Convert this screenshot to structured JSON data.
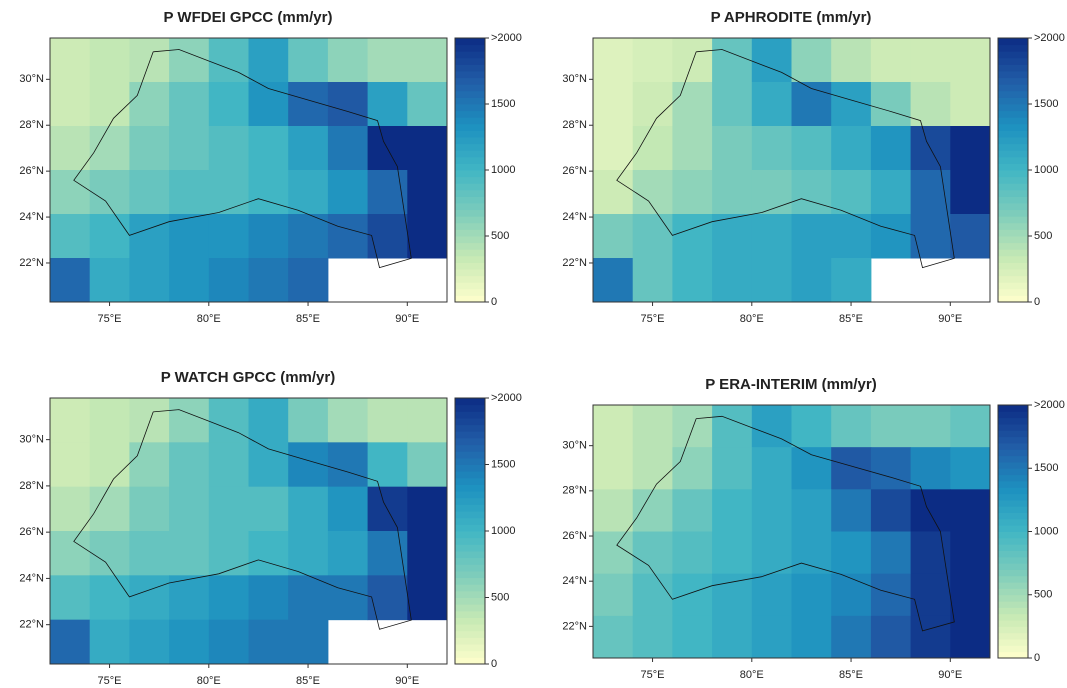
{
  "colors": [
    "#ffffcc",
    "#c7e9b4",
    "#7fcdbb",
    "#41b6c4",
    "#1d91c0",
    "#225ea8",
    "#0c2c84"
  ],
  "colorbar": {
    "lim": [
      0,
      2000
    ],
    "ticks": [
      0,
      500,
      1000,
      1500,
      {
        "value": 2000,
        "label": ">2000"
      }
    ]
  },
  "panels": [
    {
      "title": "P WFDEI GPCC (mm/yr)",
      "xlim": [
        72,
        92
      ],
      "ylim": [
        20.3,
        31.8
      ],
      "xticks": [
        {
          "value": 75,
          "label": "75°E"
        },
        {
          "value": 80,
          "label": "80°E"
        },
        {
          "value": 85,
          "label": "85°E"
        },
        {
          "value": 90,
          "label": "90°E"
        }
      ],
      "yticks": [
        {
          "value": 22,
          "label": "22°N"
        },
        {
          "value": 24,
          "label": "24°N"
        },
        {
          "value": 26,
          "label": "26°N"
        },
        {
          "value": 28,
          "label": "28°N"
        },
        {
          "value": 30,
          "label": "30°N"
        }
      ],
      "grid": [
        [
          300,
          350,
          400,
          600,
          900,
          1200,
          800,
          600,
          500,
          500
        ],
        [
          300,
          350,
          600,
          800,
          1000,
          1300,
          1600,
          1700,
          1200,
          800
        ],
        [
          400,
          500,
          700,
          800,
          900,
          1000,
          1200,
          1500,
          2000,
          2000
        ],
        [
          600,
          700,
          800,
          900,
          900,
          1000,
          1100,
          1300,
          1600,
          2000
        ],
        [
          900,
          1000,
          1200,
          1300,
          1300,
          1400,
          1500,
          1600,
          1800,
          2000
        ],
        [
          1600,
          1100,
          1200,
          1300,
          1400,
          1500,
          1600,
          null,
          null,
          null
        ]
      ]
    },
    {
      "title": "P APHRODITE (mm/yr)",
      "xlim": [
        72,
        92
      ],
      "ylim": [
        20.3,
        31.8
      ],
      "xticks": [
        {
          "value": 75,
          "label": "75°E"
        },
        {
          "value": 80,
          "label": "80°E"
        },
        {
          "value": 85,
          "label": "85°E"
        },
        {
          "value": 90,
          "label": "90°E"
        }
      ],
      "yticks": [
        {
          "value": 22,
          "label": "22°N"
        },
        {
          "value": 24,
          "label": "24°N"
        },
        {
          "value": 26,
          "label": "26°N"
        },
        {
          "value": 28,
          "label": "28°N"
        },
        {
          "value": 30,
          "label": "30°N"
        }
      ],
      "grid": [
        [
          200,
          250,
          300,
          800,
          1200,
          600,
          400,
          300,
          300,
          300
        ],
        [
          200,
          300,
          500,
          800,
          1100,
          1500,
          1200,
          700,
          400,
          300
        ],
        [
          200,
          350,
          500,
          700,
          800,
          900,
          1100,
          1300,
          1800,
          2000
        ],
        [
          300,
          500,
          600,
          700,
          700,
          800,
          900,
          1100,
          1600,
          2000
        ],
        [
          700,
          800,
          1000,
          1100,
          1100,
          1200,
          1200,
          1300,
          1600,
          1700
        ],
        [
          1500,
          800,
          1000,
          1100,
          1100,
          1200,
          1100,
          null,
          null,
          null
        ]
      ]
    },
    {
      "title": "P WATCH GPCC (mm/yr)",
      "xlim": [
        72,
        92
      ],
      "ylim": [
        20.3,
        31.8
      ],
      "xticks": [
        {
          "value": 75,
          "label": "75°E"
        },
        {
          "value": 80,
          "label": "80°E"
        },
        {
          "value": 85,
          "label": "85°E"
        },
        {
          "value": 90,
          "label": "90°E"
        }
      ],
      "yticks": [
        {
          "value": 22,
          "label": "22°N"
        },
        {
          "value": 24,
          "label": "24°N"
        },
        {
          "value": 26,
          "label": "26°N"
        },
        {
          "value": 28,
          "label": "28°N"
        },
        {
          "value": 30,
          "label": "30°N"
        }
      ],
      "grid": [
        [
          300,
          350,
          400,
          600,
          900,
          1100,
          700,
          500,
          400,
          400
        ],
        [
          300,
          350,
          600,
          800,
          900,
          1100,
          1400,
          1500,
          1000,
          700
        ],
        [
          400,
          500,
          700,
          800,
          900,
          900,
          1100,
          1300,
          1900,
          2000
        ],
        [
          600,
          700,
          800,
          800,
          900,
          1000,
          1100,
          1200,
          1500,
          2000
        ],
        [
          900,
          1000,
          1100,
          1200,
          1300,
          1400,
          1500,
          1500,
          1700,
          2000
        ],
        [
          1600,
          1100,
          1200,
          1300,
          1400,
          1500,
          1500,
          null,
          null,
          null
        ]
      ]
    },
    {
      "title": "P ERA-INTERIM (mm/yr)",
      "xlim": [
        72,
        92
      ],
      "ylim": [
        20.6,
        31.8
      ],
      "xticks": [
        {
          "value": 75,
          "label": "75°E"
        },
        {
          "value": 80,
          "label": "80°E"
        },
        {
          "value": 85,
          "label": "85°E"
        },
        {
          "value": 90,
          "label": "90°E"
        }
      ],
      "yticks": [
        {
          "value": 22,
          "label": "22°N"
        },
        {
          "value": 24,
          "label": "24°N"
        },
        {
          "value": 26,
          "label": "26°N"
        },
        {
          "value": 28,
          "label": "28°N"
        },
        {
          "value": 30,
          "label": "30°N"
        }
      ],
      "grid": [
        [
          300,
          400,
          500,
          900,
          1200,
          1000,
          800,
          700,
          700,
          800
        ],
        [
          300,
          400,
          600,
          900,
          1100,
          1300,
          1700,
          1600,
          1400,
          1300
        ],
        [
          400,
          600,
          800,
          1000,
          1100,
          1200,
          1500,
          1800,
          2000,
          2000
        ],
        [
          600,
          800,
          900,
          1000,
          1100,
          1200,
          1300,
          1500,
          1900,
          2000
        ],
        [
          700,
          900,
          1000,
          1100,
          1200,
          1300,
          1400,
          1600,
          1900,
          2000
        ],
        [
          800,
          900,
          1000,
          1100,
          1200,
          1300,
          1500,
          1700,
          1900,
          2000
        ]
      ]
    }
  ]
}
